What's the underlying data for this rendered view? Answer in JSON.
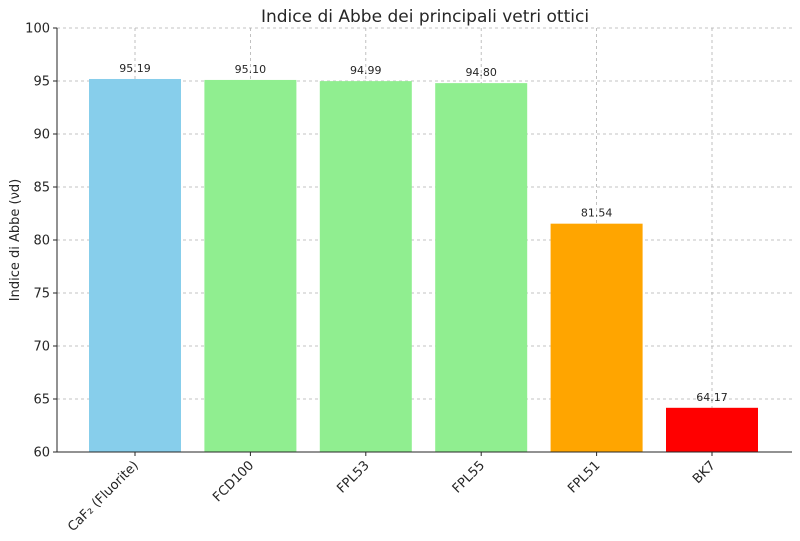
{
  "chart_data": {
    "type": "bar",
    "title": "Indice di Abbe dei principali vetri ottici",
    "xlabel": "",
    "ylabel": "Indice di Abbe (νd)",
    "ylim": [
      60,
      100
    ],
    "yticks": [
      60,
      65,
      70,
      75,
      80,
      85,
      90,
      95,
      100
    ],
    "categories": [
      "CaF₂ (Fluorite)",
      "FCD100",
      "FPL53",
      "FPL55",
      "FPL51",
      "BK7"
    ],
    "values": [
      95.19,
      95.1,
      94.99,
      94.8,
      81.54,
      64.17
    ],
    "data_labels": [
      "95.19",
      "95.10",
      "94.99",
      "94.80",
      "81.54",
      "64.17"
    ],
    "colors": [
      "#87CEEB",
      "#90EE90",
      "#90EE90",
      "#90EE90",
      "#FFA500",
      "#FF0000"
    ],
    "grid": true
  }
}
